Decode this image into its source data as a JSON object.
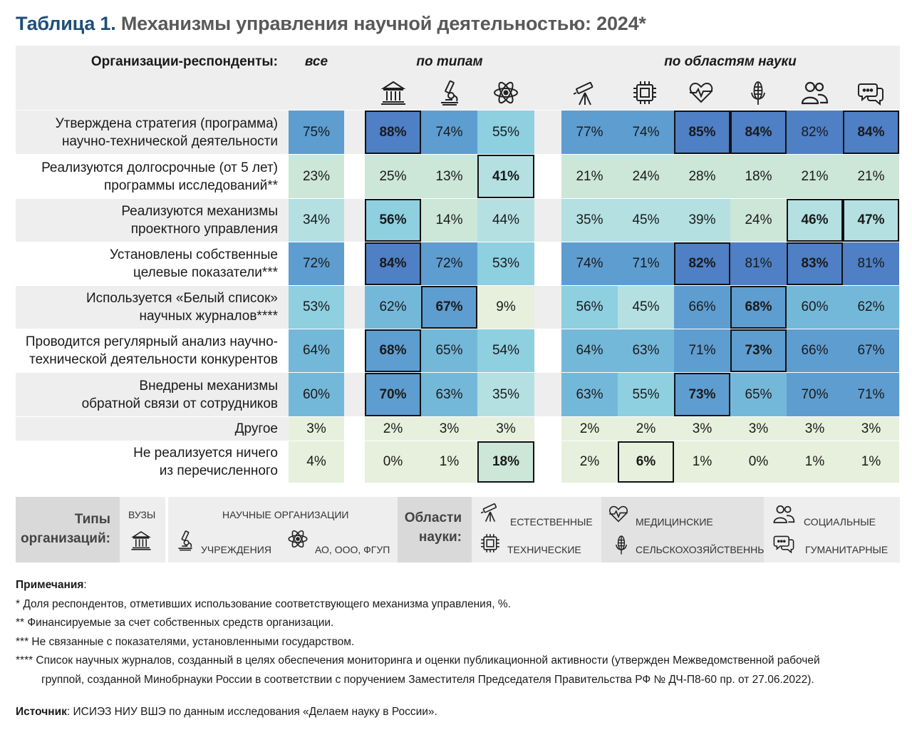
{
  "title": {
    "number": "Таблица 1.",
    "text": "Механизмы управления научной деятельностью: 2024*"
  },
  "header": {
    "respondents_label": "Организации-респонденты",
    "group_all": "все",
    "group_types": "по типам",
    "group_fields": "по областям науки"
  },
  "column_icons": [
    "university-icon",
    "microscope-icon",
    "atom-icon",
    "telescope-icon",
    "chip-icon",
    "heart-pulse-icon",
    "corn-icon",
    "people-icon",
    "chat-icon"
  ],
  "chart_data": {
    "type": "table",
    "columns": [
      "все",
      "вузы",
      "учреждения",
      "АО, ООО, ФГУП",
      "естественные",
      "технические",
      "медицинские",
      "сельскохозяйственные",
      "социальные",
      "гуманитарные"
    ],
    "unit": "%",
    "rows": [
      {
        "label": [
          "Утверждена стратегия (программа)",
          "научно-технической деятельности"
        ],
        "values": [
          75,
          88,
          74,
          55,
          77,
          74,
          85,
          84,
          82,
          84
        ],
        "highlight": [
          1,
          6,
          7,
          9
        ]
      },
      {
        "label": [
          "Реализуются долгосрочные (от 5 лет)",
          "программы исследований**"
        ],
        "values": [
          23,
          25,
          13,
          41,
          21,
          24,
          28,
          18,
          21,
          21
        ],
        "highlight": [
          3
        ]
      },
      {
        "label": [
          "Реализуются механизмы",
          "проектного управления"
        ],
        "values": [
          34,
          56,
          14,
          44,
          35,
          45,
          39,
          24,
          46,
          47
        ],
        "highlight": [
          1,
          8,
          9
        ]
      },
      {
        "label": [
          "Установлены собственные",
          "целевые показатели***"
        ],
        "values": [
          72,
          84,
          72,
          53,
          74,
          71,
          82,
          81,
          83,
          81
        ],
        "highlight": [
          1,
          6,
          8
        ]
      },
      {
        "label": [
          "Используется «Белый список»",
          "научных журналов****"
        ],
        "values": [
          53,
          62,
          67,
          9,
          56,
          45,
          66,
          68,
          60,
          62
        ],
        "highlight": [
          2,
          7
        ]
      },
      {
        "label": [
          "Проводится регулярный анализ научно-",
          "технической деятельности конкурентов"
        ],
        "values": [
          64,
          68,
          65,
          54,
          64,
          63,
          71,
          73,
          66,
          67
        ],
        "highlight": [
          1,
          7
        ]
      },
      {
        "label": [
          "Внедрены механизмы",
          "обратной связи от сотрудников"
        ],
        "values": [
          60,
          70,
          63,
          35,
          63,
          55,
          73,
          65,
          70,
          71
        ],
        "highlight": [
          1,
          6
        ]
      },
      {
        "label": [
          "Другое"
        ],
        "values": [
          3,
          2,
          3,
          3,
          2,
          2,
          3,
          3,
          3,
          3
        ],
        "highlight": []
      },
      {
        "label": [
          "Не реализуется ничего",
          "из перечисленного"
        ],
        "values": [
          4,
          0,
          1,
          18,
          2,
          6,
          1,
          0,
          1,
          1
        ],
        "highlight": [
          3,
          5
        ]
      }
    ]
  },
  "legend": {
    "types_label": [
      "Типы",
      "организаций:"
    ],
    "universities": "ВУЗЫ",
    "scientific_orgs": "НАУЧНЫЕ ОРГАНИЗАЦИИ",
    "institutions": "УЧРЕЖДЕНИЯ",
    "companies": "АО, ООО, ФГУП",
    "fields_label": [
      "Области",
      "науки:"
    ],
    "natural": "ЕСТЕСТВЕННЫЕ",
    "technical": "ТЕХНИЧЕСКИЕ",
    "medical": "МЕДИЦИНСКИЕ",
    "agricultural": "СЕЛЬСКОХОЗЯЙСТВЕННЫЕ",
    "social": "СОЦИАЛЬНЫЕ",
    "humanities": "ГУМАНИТАРНЫЕ"
  },
  "notes": {
    "title": "Примечания",
    "items": [
      "* Доля респондентов, отметивших использование соответствующего механизма управления, %.",
      "** Финансируемые за счет собственных средств организации.",
      "*** Не связанные с показателями, установленными государством.",
      "**** Список научных журналов, созданный в целях обеспечения мониторинга и оценки публикационной активности (утвержден Межведомственной рабочей",
      "группой, созданной Минобрнауки России в соответствии с поручением Заместителя Председателя Правительства РФ № ДЧ-П8-60 пр. от 27.06.2022)."
    ]
  },
  "source": {
    "label": "Источник",
    "text": "ИСИЭЗ НИУ ВШЭ по данным исследования «Делаем науку в России»."
  },
  "colors": {
    "title_blue": "#1f4e79",
    "band_gray": "#eeeeee",
    "scale": [
      "#e6f0dc",
      "#cce6d8",
      "#b4e0e2",
      "#8ecfe0",
      "#74b8d9",
      "#5e9dd0",
      "#4f7fc4"
    ]
  }
}
